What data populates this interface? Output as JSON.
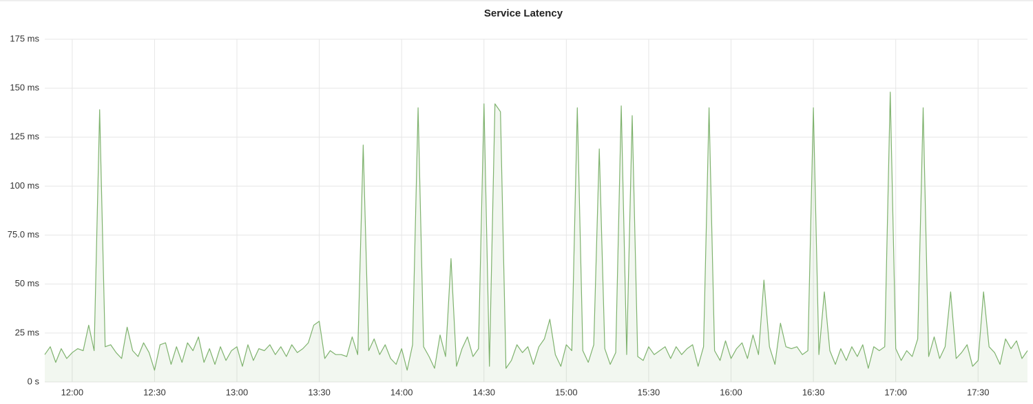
{
  "chart_data": {
    "type": "line",
    "title": "Service Latency",
    "x": [
      "11:50",
      "11:52",
      "11:54",
      "11:56",
      "11:58",
      "12:00",
      "12:02",
      "12:04",
      "12:06",
      "12:08",
      "12:10",
      "12:12",
      "12:14",
      "12:16",
      "12:18",
      "12:20",
      "12:22",
      "12:24",
      "12:26",
      "12:28",
      "12:30",
      "12:32",
      "12:34",
      "12:36",
      "12:38",
      "12:40",
      "12:42",
      "12:44",
      "12:46",
      "12:48",
      "12:50",
      "12:52",
      "12:54",
      "12:56",
      "12:58",
      "13:00",
      "13:02",
      "13:04",
      "13:06",
      "13:08",
      "13:10",
      "13:12",
      "13:14",
      "13:16",
      "13:18",
      "13:20",
      "13:22",
      "13:24",
      "13:26",
      "13:28",
      "13:30",
      "13:32",
      "13:34",
      "13:36",
      "13:38",
      "13:40",
      "13:42",
      "13:44",
      "13:46",
      "13:48",
      "13:50",
      "13:52",
      "13:54",
      "13:56",
      "13:58",
      "14:00",
      "14:02",
      "14:04",
      "14:06",
      "14:08",
      "14:10",
      "14:12",
      "14:14",
      "14:16",
      "14:18",
      "14:20",
      "14:22",
      "14:24",
      "14:26",
      "14:28",
      "14:30",
      "14:32",
      "14:34",
      "14:36",
      "14:38",
      "14:40",
      "14:42",
      "14:44",
      "14:46",
      "14:48",
      "14:50",
      "14:52",
      "14:54",
      "14:56",
      "14:58",
      "15:00",
      "15:02",
      "15:04",
      "15:06",
      "15:08",
      "15:10",
      "15:12",
      "15:14",
      "15:16",
      "15:18",
      "15:20",
      "15:22",
      "15:24",
      "15:26",
      "15:28",
      "15:30",
      "15:32",
      "15:34",
      "15:36",
      "15:38",
      "15:40",
      "15:42",
      "15:44",
      "15:46",
      "15:48",
      "15:50",
      "15:52",
      "15:54",
      "15:56",
      "15:58",
      "16:00",
      "16:02",
      "16:04",
      "16:06",
      "16:08",
      "16:10",
      "16:12",
      "16:14",
      "16:16",
      "16:18",
      "16:20",
      "16:22",
      "16:24",
      "16:26",
      "16:28",
      "16:30",
      "16:32",
      "16:34",
      "16:36",
      "16:38",
      "16:40",
      "16:42",
      "16:44",
      "16:46",
      "16:48",
      "16:50",
      "16:52",
      "16:54",
      "16:56",
      "16:58",
      "17:00",
      "17:02",
      "17:04",
      "17:06",
      "17:08",
      "17:10",
      "17:12",
      "17:14",
      "17:16",
      "17:18",
      "17:20",
      "17:22",
      "17:24",
      "17:26",
      "17:28",
      "17:30",
      "17:32",
      "17:34",
      "17:36",
      "17:38",
      "17:40",
      "17:42",
      "17:44",
      "17:46",
      "17:48"
    ],
    "series": [
      {
        "color": "#7eb26d",
        "values": [
          14,
          18,
          10,
          17,
          12,
          15,
          17,
          16,
          29,
          16,
          139,
          18,
          19,
          15,
          12,
          28,
          16,
          13,
          20,
          15,
          6,
          19,
          20,
          9,
          18,
          10,
          20,
          16,
          23,
          10,
          17,
          9,
          18,
          11,
          16,
          18,
          8,
          19,
          11,
          17,
          16,
          19,
          14,
          18,
          13,
          19,
          15,
          17,
          20,
          29,
          31,
          12,
          16,
          14,
          14,
          13,
          23,
          14,
          121,
          16,
          22,
          14,
          19,
          12,
          9,
          17,
          6,
          19,
          140,
          18,
          13,
          7,
          24,
          13,
          63,
          8,
          17,
          23,
          13,
          17,
          142,
          8,
          142,
          138,
          7,
          11,
          19,
          15,
          18,
          9,
          18,
          22,
          32,
          14,
          8,
          19,
          16,
          140,
          16,
          10,
          19,
          119,
          17,
          9,
          15,
          141,
          14,
          136,
          13,
          11,
          18,
          14,
          16,
          18,
          12,
          18,
          14,
          17,
          19,
          8,
          18,
          140,
          16,
          11,
          21,
          12,
          17,
          20,
          12,
          24,
          14,
          52,
          18,
          9,
          30,
          18,
          17,
          18,
          14,
          16,
          140,
          14,
          46,
          16,
          9,
          17,
          11,
          18,
          13,
          19,
          7,
          18,
          16,
          18,
          148,
          17,
          11,
          16,
          13,
          22,
          140,
          13,
          23,
          12,
          18,
          46,
          12,
          15,
          19,
          8,
          11,
          46,
          18,
          15,
          9,
          22,
          17,
          21,
          12,
          16
        ]
      }
    ],
    "xlim": [
      "11:50",
      "17:48"
    ],
    "xticks": [
      "12:00",
      "12:30",
      "13:00",
      "13:30",
      "14:00",
      "14:30",
      "15:00",
      "15:30",
      "16:00",
      "16:30",
      "17:00",
      "17:30"
    ],
    "ylim": [
      0,
      175
    ],
    "yticks": [
      {
        "value": 0,
        "label": "0 s"
      },
      {
        "value": 25,
        "label": "25 ms"
      },
      {
        "value": 50,
        "label": "50 ms"
      },
      {
        "value": 75,
        "label": "75.0 ms"
      },
      {
        "value": 100,
        "label": "100 ms"
      },
      {
        "value": 125,
        "label": "125 ms"
      },
      {
        "value": 150,
        "label": "150 ms"
      },
      {
        "value": 175,
        "label": "175 ms"
      }
    ],
    "grid": true
  }
}
